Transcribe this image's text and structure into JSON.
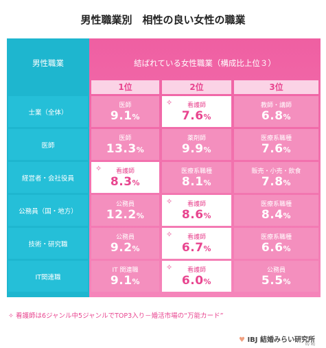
{
  "header": {
    "title": "男性職業別　相性の良い女性の職業"
  },
  "table": {
    "left_header": "男性職業",
    "right_header": "結ばれている女性職業（構成比上位３）",
    "ranks": [
      "1位",
      "2位",
      "3位"
    ],
    "rows": [
      {
        "label": "士業（全体）",
        "cells": [
          {
            "job": "医師",
            "value": "9.1",
            "unit": "%",
            "highlight": false
          },
          {
            "job": "看護師",
            "value": "7.6",
            "unit": "%",
            "highlight": true
          },
          {
            "job": "教師・講師",
            "value": "6.8",
            "unit": "%",
            "highlight": false
          }
        ]
      },
      {
        "label": "医師",
        "cells": [
          {
            "job": "医師",
            "value": "13.3",
            "unit": "%",
            "highlight": false
          },
          {
            "job": "薬剤師",
            "value": "9.9",
            "unit": "%",
            "highlight": false
          },
          {
            "job": "医療系職種",
            "value": "7.6",
            "unit": "%",
            "highlight": false
          }
        ]
      },
      {
        "label": "経営者・会社役員",
        "cells": [
          {
            "job": "看護師",
            "value": "8.3",
            "unit": "%",
            "highlight": true
          },
          {
            "job": "医療系職種",
            "value": "8.1",
            "unit": "%",
            "highlight": false
          },
          {
            "job": "販売・小売・飲食",
            "value": "7.8",
            "unit": "%",
            "highlight": false
          }
        ]
      },
      {
        "label": "公務員（国・地方）",
        "cells": [
          {
            "job": "公務員",
            "value": "12.2",
            "unit": "%",
            "highlight": false
          },
          {
            "job": "看護師",
            "value": "8.6",
            "unit": "%",
            "highlight": true
          },
          {
            "job": "医療系職種",
            "value": "8.4",
            "unit": "%",
            "highlight": false
          }
        ]
      },
      {
        "label": "技術・研究職",
        "cells": [
          {
            "job": "公務員",
            "value": "9.2",
            "unit": "%",
            "highlight": false
          },
          {
            "job": "看護師",
            "value": "6.7",
            "unit": "%",
            "highlight": true
          },
          {
            "job": "医療系職種",
            "value": "6.6",
            "unit": "%",
            "highlight": false
          }
        ]
      },
      {
        "label": "IT関連職",
        "cells": [
          {
            "job": "IT 関連職",
            "value": "9.1",
            "unit": "%",
            "highlight": false
          },
          {
            "job": "看護師",
            "value": "6.0",
            "unit": "%",
            "highlight": true
          },
          {
            "job": "公務員",
            "value": "5.5",
            "unit": "%",
            "highlight": false
          }
        ]
      }
    ]
  },
  "footnote": "看護師は6ジャンル中5ジャンルでTOP3入り－婚活市場の“万能カード”",
  "logo": {
    "name": "IBJ 結婚みらい研究所",
    "sub": "by IBJ"
  }
}
